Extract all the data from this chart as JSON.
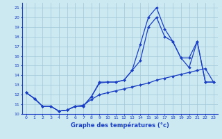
{
  "xlabel": "Graphe des températures (°c)",
  "bg_color": "#cce8f0",
  "line_color": "#1a3fc4",
  "grid_color": "#a0c8d8",
  "xlim": [
    -0.5,
    23.5
  ],
  "ylim": [
    10,
    21.5
  ],
  "yticks": [
    10,
    11,
    12,
    13,
    14,
    15,
    16,
    17,
    18,
    19,
    20,
    21
  ],
  "xticks": [
    0,
    1,
    2,
    3,
    4,
    5,
    6,
    7,
    8,
    9,
    10,
    11,
    12,
    13,
    14,
    15,
    16,
    17,
    18,
    19,
    20,
    21,
    22,
    23
  ],
  "line1_x": [
    0,
    1,
    2,
    3,
    4,
    5,
    6,
    7,
    8,
    9,
    10,
    11,
    12,
    13,
    14,
    15,
    16,
    17,
    18,
    19,
    20,
    21,
    22,
    23
  ],
  "line1_y": [
    12.2,
    11.6,
    10.8,
    10.8,
    10.3,
    10.4,
    10.8,
    10.8,
    11.8,
    13.3,
    13.3,
    13.3,
    13.5,
    14.5,
    17.2,
    20.0,
    21.0,
    18.8,
    17.5,
    15.8,
    14.8,
    17.5,
    13.3,
    13.3
  ],
  "line2_x": [
    0,
    1,
    2,
    3,
    4,
    5,
    6,
    7,
    8,
    9,
    10,
    11,
    12,
    13,
    14,
    15,
    16,
    17,
    18,
    19,
    20,
    21,
    22,
    23
  ],
  "line2_y": [
    12.2,
    11.6,
    10.8,
    10.8,
    10.3,
    10.4,
    10.8,
    10.8,
    11.8,
    13.2,
    13.3,
    13.3,
    13.5,
    14.5,
    15.5,
    19.0,
    20.0,
    18.0,
    17.5,
    15.8,
    15.8,
    17.5,
    13.3,
    13.3
  ],
  "line3_x": [
    0,
    1,
    2,
    3,
    4,
    5,
    6,
    7,
    8,
    9,
    10,
    11,
    12,
    13,
    14,
    15,
    16,
    17,
    18,
    19,
    20,
    21,
    22,
    23
  ],
  "line3_y": [
    12.2,
    11.6,
    10.8,
    10.8,
    10.3,
    10.4,
    10.8,
    10.9,
    11.5,
    12.0,
    12.2,
    12.4,
    12.6,
    12.8,
    13.0,
    13.2,
    13.5,
    13.7,
    13.9,
    14.1,
    14.3,
    14.5,
    14.7,
    13.3
  ]
}
